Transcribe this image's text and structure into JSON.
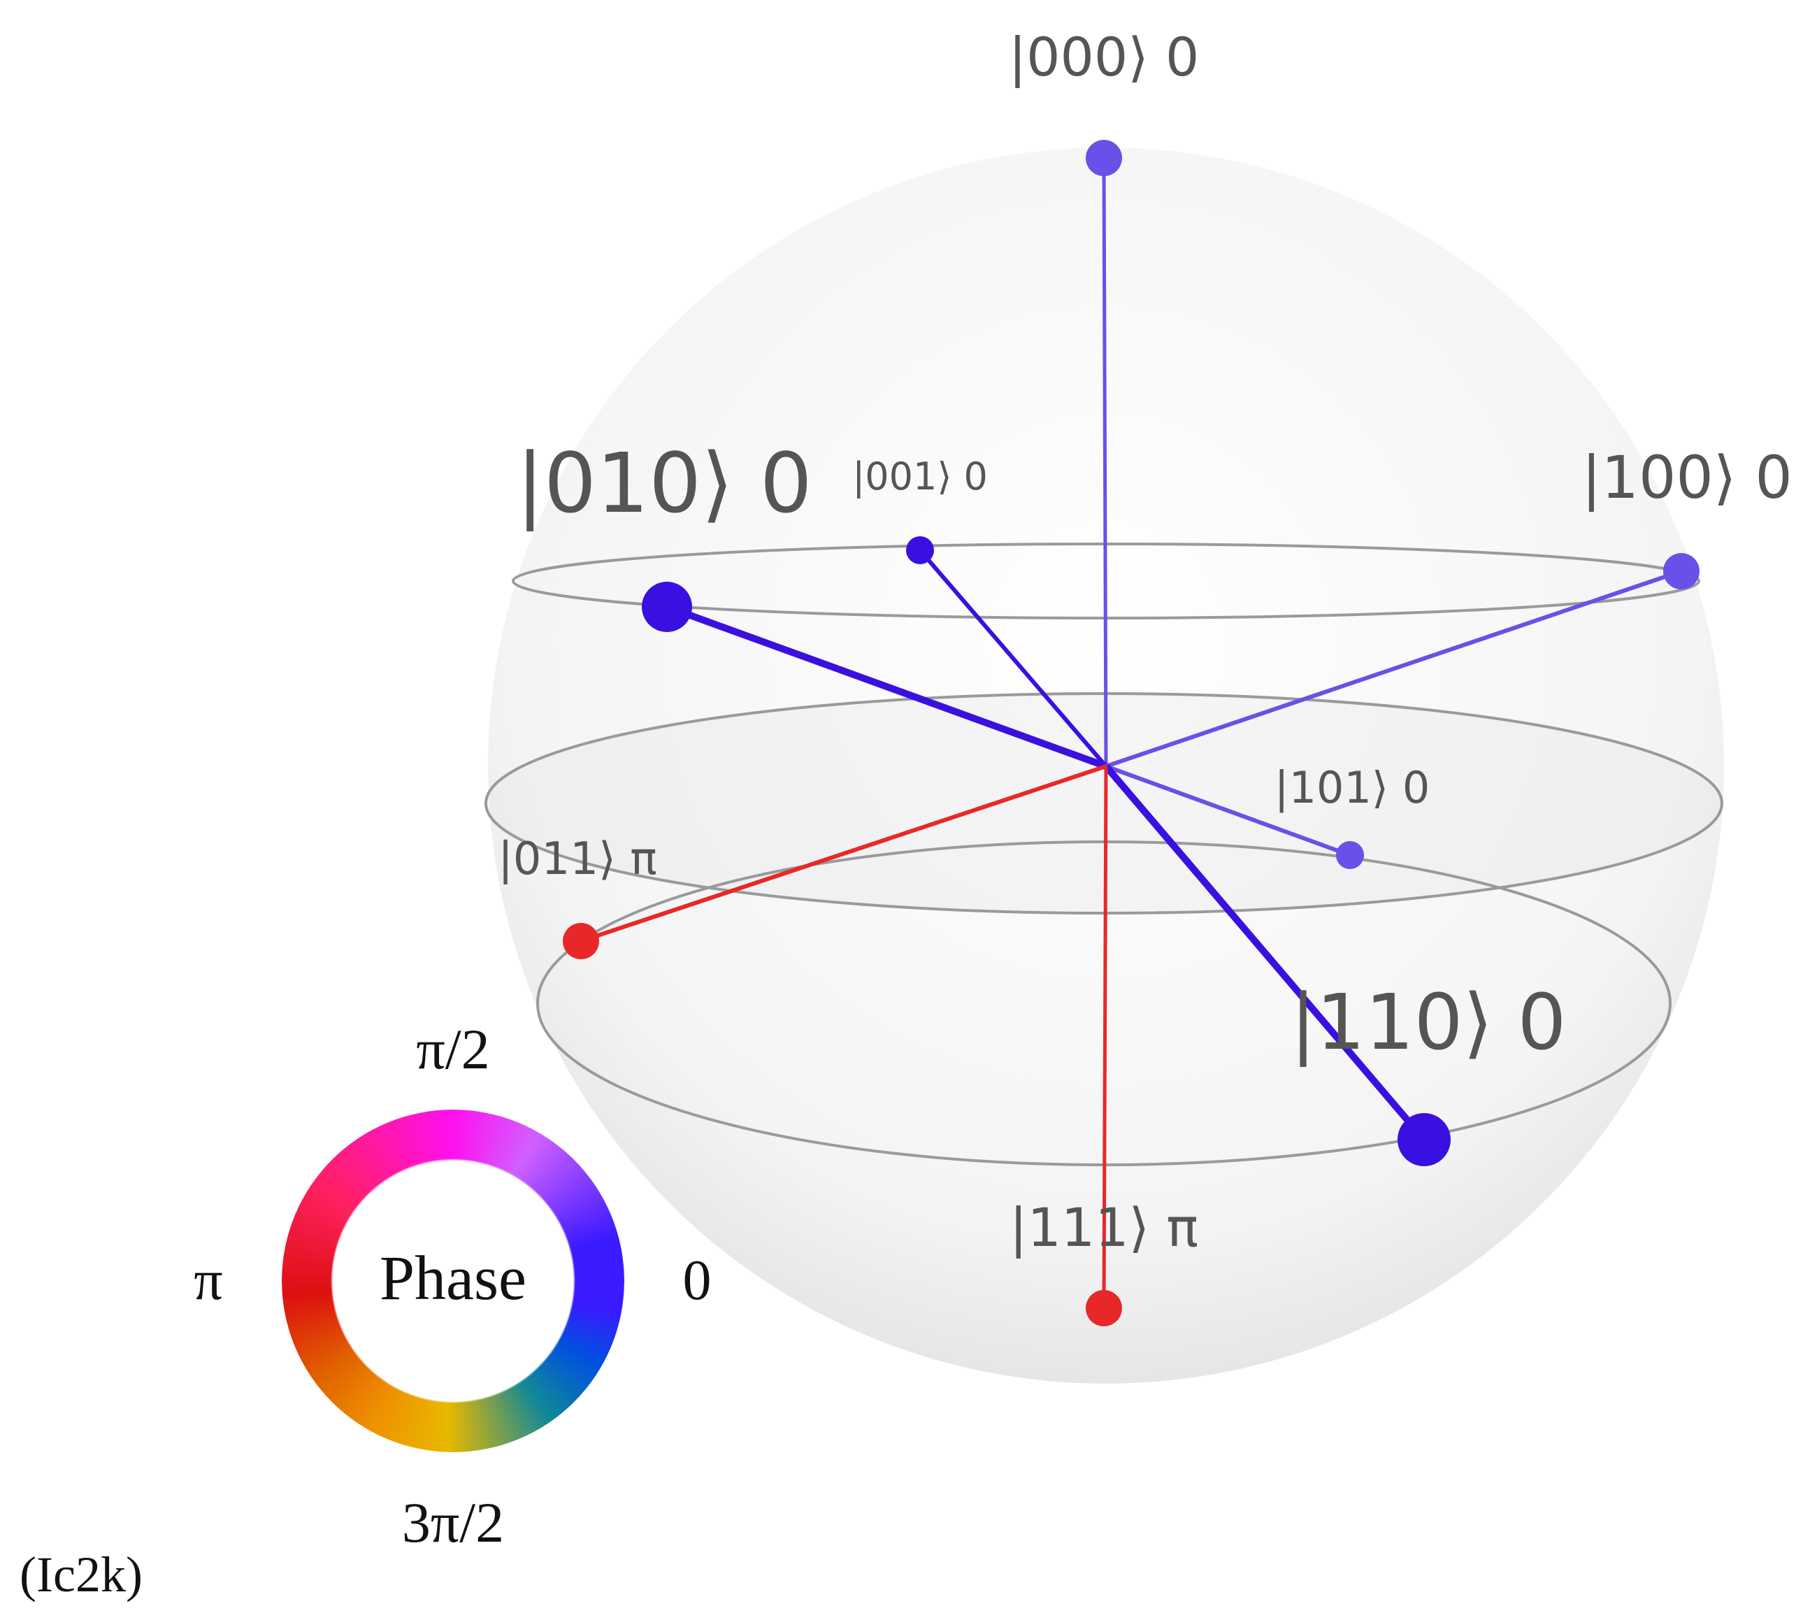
{
  "colors": {
    "phase_0": "#3a10e0",
    "phase_0_light": "#6a50e8",
    "phase_pi": "#e82828",
    "sphere": "#f2f2f2",
    "ring": "#9a9a9a"
  },
  "states": [
    {
      "ket": "|000⟩ 0",
      "basis": "000",
      "phase": "0"
    },
    {
      "ket": "|010⟩ 0",
      "basis": "010",
      "phase": "0"
    },
    {
      "ket": "|001⟩ 0",
      "basis": "001",
      "phase": "0"
    },
    {
      "ket": "|100⟩ 0",
      "basis": "100",
      "phase": "0"
    },
    {
      "ket": "|101⟩ 0",
      "basis": "101",
      "phase": "0"
    },
    {
      "ket": "|011⟩ π",
      "basis": "011",
      "phase": "π"
    },
    {
      "ket": "|110⟩ 0",
      "basis": "110",
      "phase": "0"
    },
    {
      "ket": "|111⟩ π",
      "basis": "111",
      "phase": "π"
    }
  ],
  "legend": {
    "title": "Phase",
    "top": "π/2",
    "left": "π",
    "right": "0",
    "bottom": "3π/2"
  },
  "caption": "(Ic2k)"
}
